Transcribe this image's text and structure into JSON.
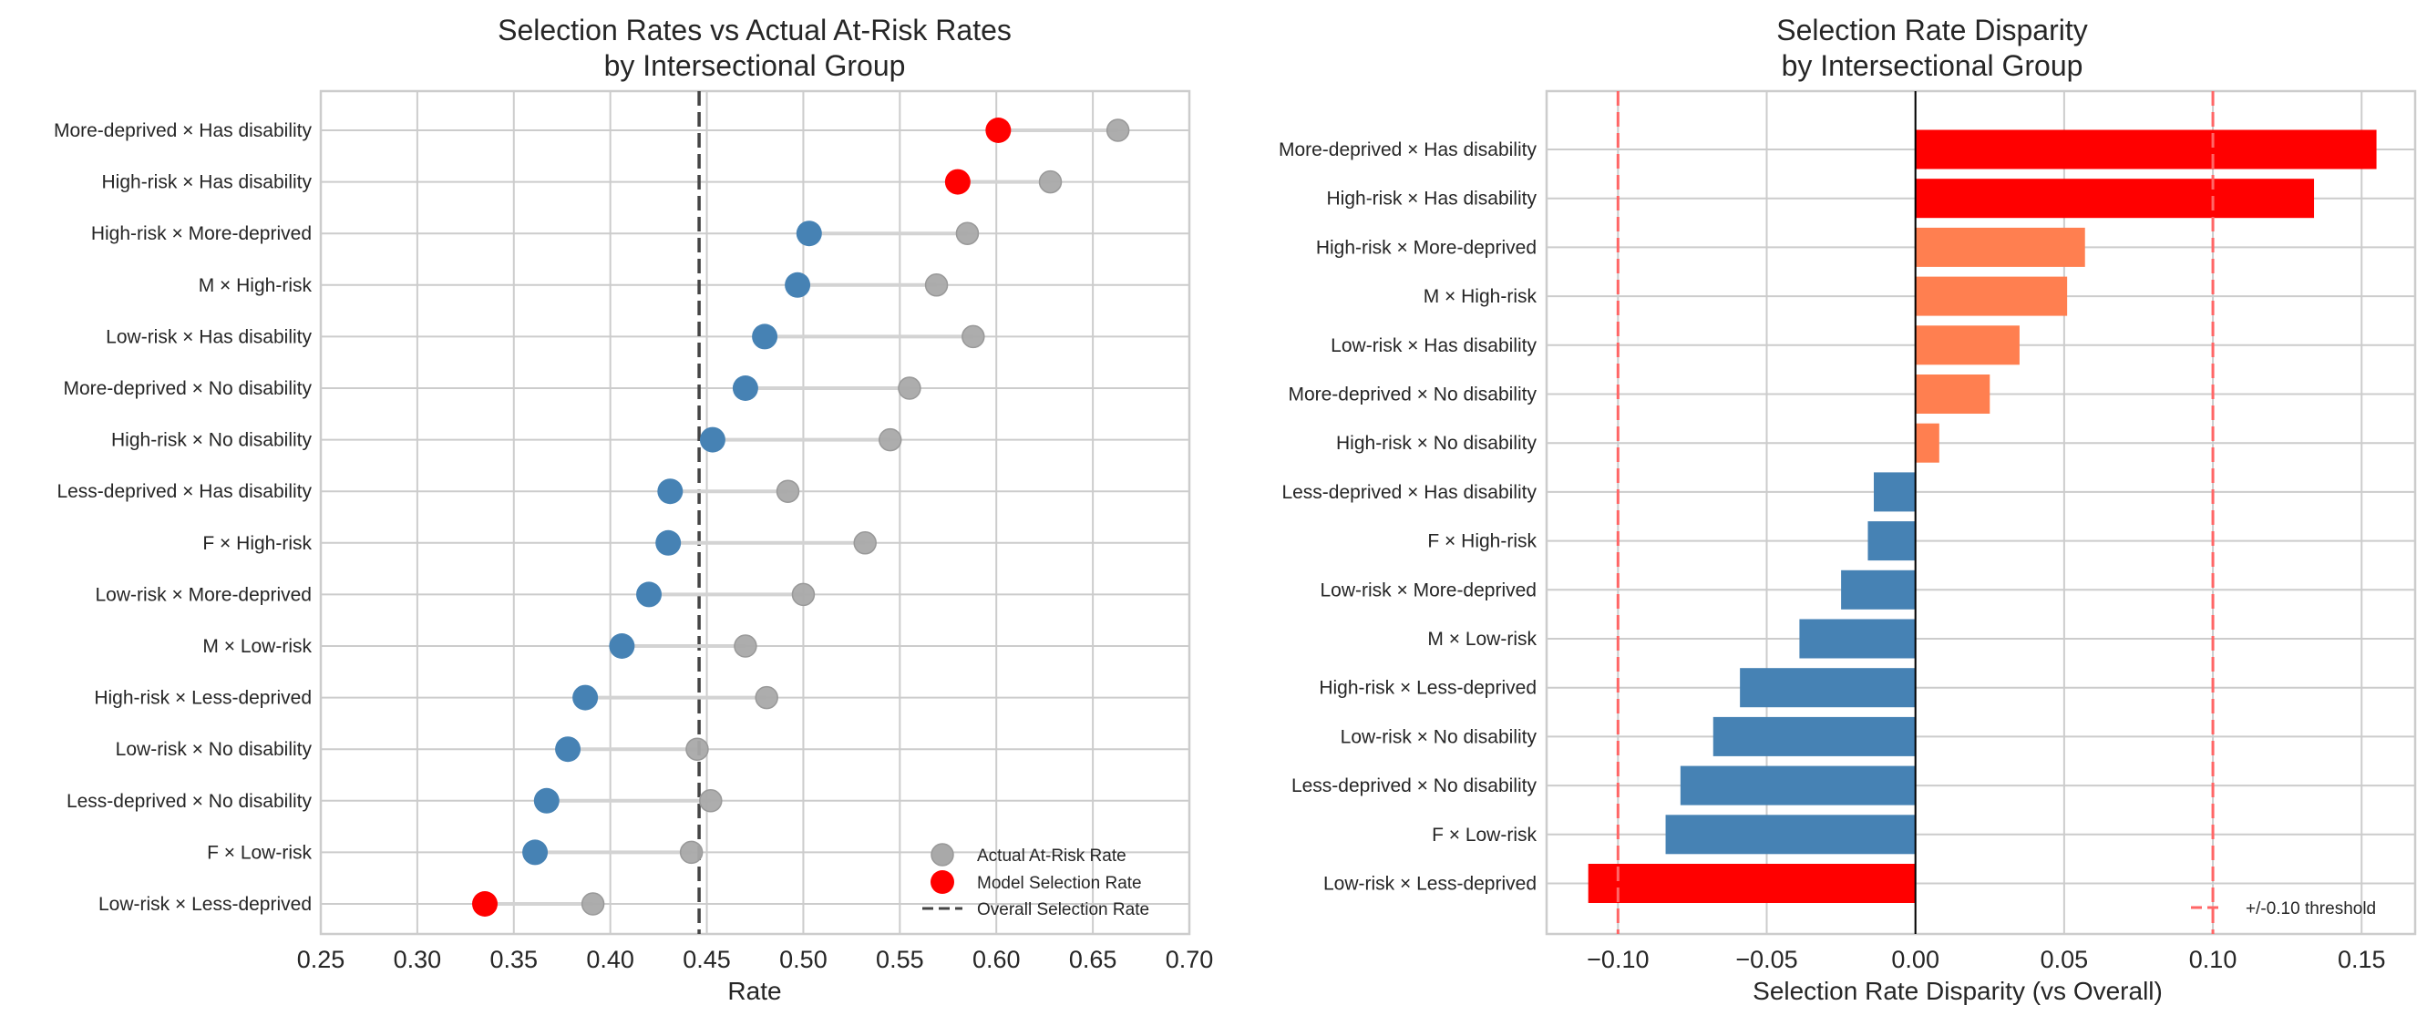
{
  "chart_data": [
    {
      "type": "scatter",
      "title": "Selection Rates vs Actual At-Risk Rates\nby Intersectional Group",
      "title_lines": [
        "Selection Rates vs Actual At-Risk Rates",
        "by Intersectional Group"
      ],
      "xlabel": "Rate",
      "ylabel": "",
      "xlim": [
        0.25,
        0.7
      ],
      "xticks": [
        0.25,
        0.3,
        0.35,
        0.4,
        0.45,
        0.5,
        0.55,
        0.6,
        0.65,
        0.7
      ],
      "xtick_labels": [
        "0.25",
        "0.30",
        "0.35",
        "0.40",
        "0.45",
        "0.50",
        "0.55",
        "0.60",
        "0.65",
        "0.70"
      ],
      "grid": true,
      "legend_position": "lower-right",
      "legend": [
        "Actual At-Risk Rate",
        "Model Selection Rate",
        "Overall Selection Rate"
      ],
      "overall_selection_rate": 0.446,
      "categories": [
        "More-deprived × Has disability",
        "High-risk × Has disability",
        "High-risk × More-deprived",
        "M × High-risk",
        "Low-risk × Has disability",
        "More-deprived × No disability",
        "High-risk × No disability",
        "Less-deprived × Has disability",
        "F × High-risk",
        "Low-risk × More-deprived",
        "M × Low-risk",
        "High-risk × Less-deprived",
        "Low-risk × No disability",
        "Less-deprived × No disability",
        "F × Low-risk",
        "Low-risk × Less-deprived"
      ],
      "series": [
        {
          "name": "Model Selection Rate",
          "values": [
            0.601,
            0.58,
            0.503,
            0.497,
            0.48,
            0.47,
            0.453,
            0.431,
            0.43,
            0.42,
            0.406,
            0.387,
            0.378,
            0.367,
            0.361,
            0.335
          ],
          "flagged": [
            true,
            true,
            false,
            false,
            false,
            false,
            false,
            false,
            false,
            false,
            false,
            false,
            false,
            false,
            false,
            true
          ]
        },
        {
          "name": "Actual At-Risk Rate",
          "values": [
            0.663,
            0.628,
            0.585,
            0.569,
            0.588,
            0.555,
            0.545,
            0.492,
            0.532,
            0.5,
            0.47,
            0.481,
            0.445,
            0.452,
            0.442,
            0.391
          ]
        }
      ],
      "colors": {
        "selection": "#4682b4",
        "flagged": "#ff0000",
        "actual": "#a9a9a9",
        "overall": "#444444"
      }
    },
    {
      "type": "bar",
      "orientation": "horizontal",
      "title": "Selection Rate Disparity\nby Intersectional Group",
      "title_lines": [
        "Selection Rate Disparity",
        "by Intersectional Group"
      ],
      "xlabel": "Selection Rate Disparity (vs Overall)",
      "ylabel": "",
      "xlim": [
        -0.124,
        0.168
      ],
      "xticks": [
        -0.1,
        -0.05,
        0.0,
        0.05,
        0.1,
        0.15
      ],
      "xtick_labels": [
        "−0.10",
        "−0.05",
        "0.00",
        "0.05",
        "0.10",
        "0.15"
      ],
      "grid": true,
      "legend_position": "lower-right",
      "legend": [
        "+/-0.10 threshold"
      ],
      "threshold": 0.1,
      "categories": [
        "More-deprived × Has disability",
        "High-risk × Has disability",
        "High-risk × More-deprived",
        "M × High-risk",
        "Low-risk × Has disability",
        "More-deprived × No disability",
        "High-risk × No disability",
        "Less-deprived × Has disability",
        "F × High-risk",
        "Low-risk × More-deprived",
        "M × Low-risk",
        "High-risk × Less-deprived",
        "Low-risk × No disability",
        "Less-deprived × No disability",
        "F × Low-risk",
        "Low-risk × Less-deprived"
      ],
      "values": [
        0.155,
        0.134,
        0.057,
        0.051,
        0.035,
        0.025,
        0.008,
        -0.014,
        -0.016,
        -0.025,
        -0.039,
        -0.059,
        -0.068,
        -0.079,
        -0.084,
        -0.11
      ],
      "colors": {
        "exceeds": "#ff0000",
        "positive": "#ff7f50",
        "negative": "#4682b4",
        "threshold": "#ff6666"
      }
    }
  ]
}
